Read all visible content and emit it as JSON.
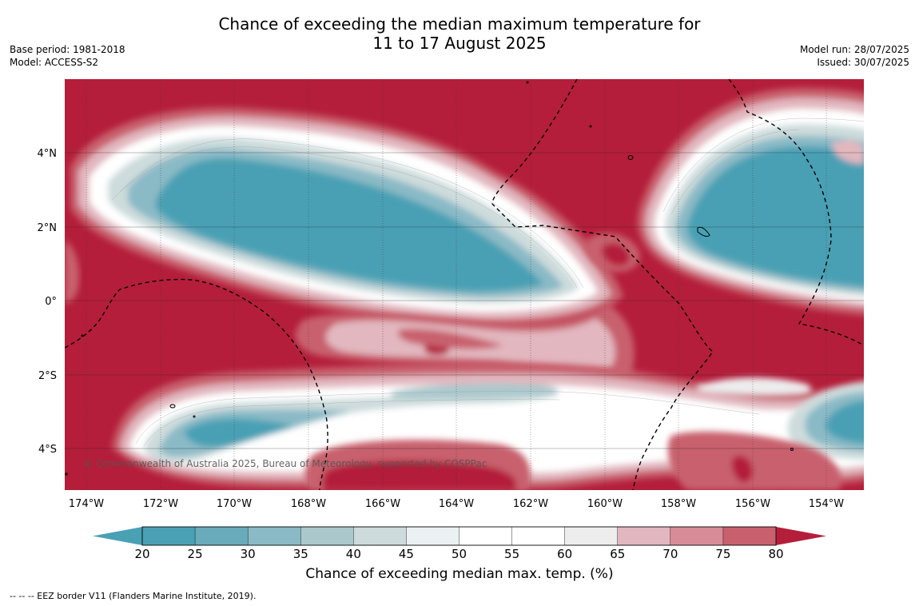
{
  "title": {
    "line1": "Chance of exceeding the median maximum temperature for",
    "line2": "11 to 17 August 2025"
  },
  "meta_left": {
    "base_period": "Base period: 1981-2018",
    "model": "Model: ACCESS-S2"
  },
  "meta_right": {
    "model_run": "Model run: 28/07/2025",
    "issued": "Issued: 30/07/2025"
  },
  "map": {
    "lon_labels": [
      "174°W",
      "172°W",
      "170°W",
      "168°W",
      "166°W",
      "164°W",
      "162°W",
      "160°W",
      "158°W",
      "156°W",
      "154°W"
    ],
    "lat_labels": [
      "4°N",
      "2°N",
      "0°",
      "2°S",
      "4°S"
    ],
    "copyright": "© Commonwealth of Australia 2025, Bureau of Meteorology, supported by COSPPac"
  },
  "colorbar": {
    "ticks": [
      "20",
      "25",
      "30",
      "35",
      "40",
      "45",
      "50",
      "55",
      "60",
      "65",
      "70",
      "75",
      "80"
    ],
    "colors": [
      "#4aa0b4",
      "#6aabbb",
      "#8abac6",
      "#abc9cd",
      "#cddbdc",
      "#ebf1f2",
      "#ffffff",
      "#ffffff",
      "#ededee",
      "#e2b7bf",
      "#d88c97",
      "#c8606d",
      "#bf4456"
    ],
    "under_color": "#4aa0b4",
    "over_color": "#b41e3a",
    "label": "Chance of exceeding median max. temp. (%)"
  },
  "footnote": "--  --  -- EEZ border V11 (Flanders Marine Institute, 2019)."
}
